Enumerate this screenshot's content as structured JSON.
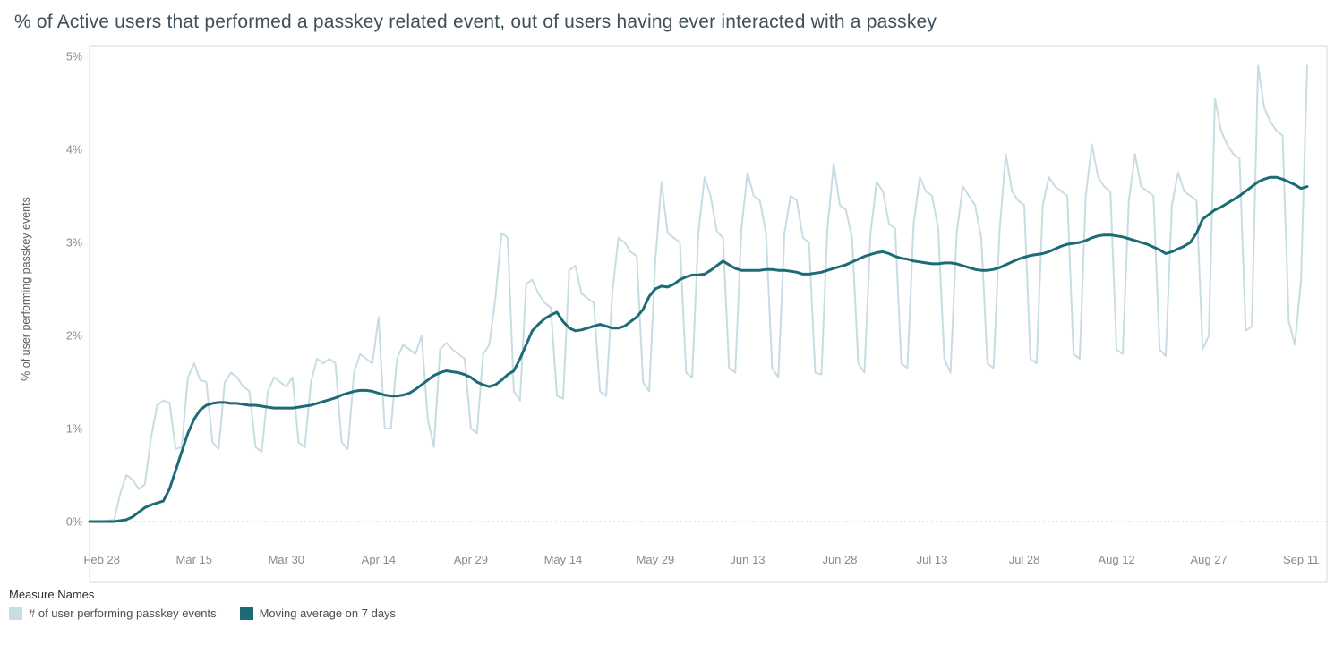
{
  "chart": {
    "title": "% of Active users that performed a passkey related event, out of users having ever interacted with a passkey",
    "y_axis": {
      "label": "% of user performing passkey events",
      "tick_labels": [
        "0%",
        "1%",
        "2%",
        "3%",
        "4%",
        "5%"
      ],
      "tick_values": [
        0,
        1,
        2,
        3,
        4,
        5
      ]
    },
    "x_axis": {
      "ticks": [
        {
          "label": "Feb 28",
          "day": 2
        },
        {
          "label": "Mar 15",
          "day": 17
        },
        {
          "label": "Mar 30",
          "day": 32
        },
        {
          "label": "Apr 14",
          "day": 47
        },
        {
          "label": "Apr 29",
          "day": 62
        },
        {
          "label": "May 14",
          "day": 77
        },
        {
          "label": "May 29",
          "day": 92
        },
        {
          "label": "Jun 13",
          "day": 107
        },
        {
          "label": "Jun 28",
          "day": 122
        },
        {
          "label": "Jul 13",
          "day": 137
        },
        {
          "label": "Jul 28",
          "day": 152
        },
        {
          "label": "Aug 12",
          "day": 167
        },
        {
          "label": "Aug 27",
          "day": 182
        },
        {
          "label": "Sep 11",
          "day": 197
        }
      ]
    },
    "legend": {
      "title": "Measure Names",
      "items": [
        {
          "label": "# of user performing passkey events",
          "color": "#c7dde3"
        },
        {
          "label": "Moving average on 7 days",
          "color": "#1c6b75"
        }
      ]
    },
    "colors": {
      "daily_line": "#c7dde3",
      "moving_average_line": "#1c6b75",
      "axis_border": "#d9d9d9",
      "zero_gridline": "#c9c9c9",
      "tick_text": "#8a8a8a",
      "axis_title_text": "#5f5f5f"
    }
  },
  "chart_data": {
    "type": "line",
    "title": "% of Active users that performed a passkey related event, out of users having ever interacted with a passkey",
    "xlabel": "",
    "ylabel": "% of user performing passkey events",
    "ylim": [
      0,
      5
    ],
    "x_unit": "days since Feb 26",
    "x_start_day": 0,
    "x_end_day": 198,
    "grid": "zero-line dotted only",
    "legend_position": "bottom-left",
    "series": [
      {
        "name": "# of user performing passkey events",
        "color": "#c7dde3",
        "width": 2,
        "values": [
          0.0,
          0.0,
          0.0,
          0.01,
          0.02,
          0.3,
          0.5,
          0.45,
          0.35,
          0.4,
          0.9,
          1.25,
          1.3,
          1.28,
          0.78,
          0.8,
          1.55,
          1.7,
          1.52,
          1.5,
          0.85,
          0.78,
          1.5,
          1.6,
          1.55,
          1.45,
          1.4,
          0.8,
          0.75,
          1.4,
          1.55,
          1.5,
          1.45,
          1.55,
          0.85,
          0.8,
          1.5,
          1.75,
          1.7,
          1.75,
          1.7,
          0.85,
          0.78,
          1.6,
          1.8,
          1.75,
          1.7,
          2.2,
          1.0,
          1.0,
          1.75,
          1.9,
          1.85,
          1.8,
          2.0,
          1.1,
          0.8,
          1.85,
          1.92,
          1.85,
          1.8,
          1.75,
          1.0,
          0.95,
          1.8,
          1.9,
          2.4,
          3.1,
          3.05,
          1.4,
          1.3,
          2.55,
          2.6,
          2.45,
          2.35,
          2.3,
          1.35,
          1.32,
          2.7,
          2.75,
          2.45,
          2.4,
          2.35,
          1.4,
          1.35,
          2.45,
          3.05,
          3.0,
          2.9,
          2.85,
          1.5,
          1.4,
          2.8,
          3.65,
          3.1,
          3.05,
          3.0,
          1.6,
          1.55,
          3.1,
          3.7,
          3.5,
          3.12,
          3.05,
          1.65,
          1.6,
          3.15,
          3.75,
          3.5,
          3.45,
          3.1,
          1.65,
          1.55,
          3.1,
          3.5,
          3.45,
          3.05,
          3.0,
          1.6,
          1.58,
          3.15,
          3.85,
          3.4,
          3.35,
          3.05,
          1.7,
          1.6,
          3.1,
          3.65,
          3.55,
          3.2,
          3.15,
          1.7,
          1.65,
          3.2,
          3.7,
          3.55,
          3.5,
          3.15,
          1.75,
          1.6,
          3.1,
          3.6,
          3.5,
          3.4,
          3.05,
          1.7,
          1.65,
          3.15,
          3.95,
          3.55,
          3.45,
          3.4,
          1.75,
          1.7,
          3.4,
          3.7,
          3.6,
          3.55,
          3.5,
          1.8,
          1.75,
          3.5,
          4.05,
          3.7,
          3.6,
          3.55,
          1.85,
          1.8,
          3.45,
          3.95,
          3.6,
          3.55,
          3.5,
          1.85,
          1.78,
          3.4,
          3.75,
          3.55,
          3.5,
          3.45,
          1.85,
          2.0,
          4.55,
          4.2,
          4.05,
          3.95,
          3.9,
          2.05,
          2.1,
          4.9,
          4.45,
          4.3,
          4.2,
          4.15,
          2.15,
          1.9,
          2.6,
          4.9
        ]
      },
      {
        "name": "Moving average on 7 days",
        "color": "#1c6b75",
        "width": 3,
        "values": [
          0.0,
          0.0,
          0.0,
          0.0,
          0.0,
          0.01,
          0.02,
          0.05,
          0.1,
          0.15,
          0.18,
          0.2,
          0.22,
          0.35,
          0.55,
          0.75,
          0.95,
          1.1,
          1.2,
          1.25,
          1.27,
          1.28,
          1.28,
          1.27,
          1.27,
          1.26,
          1.25,
          1.25,
          1.24,
          1.23,
          1.22,
          1.22,
          1.22,
          1.22,
          1.23,
          1.24,
          1.25,
          1.27,
          1.29,
          1.31,
          1.33,
          1.36,
          1.38,
          1.4,
          1.41,
          1.41,
          1.4,
          1.38,
          1.36,
          1.35,
          1.35,
          1.36,
          1.38,
          1.42,
          1.47,
          1.52,
          1.57,
          1.6,
          1.62,
          1.61,
          1.6,
          1.58,
          1.55,
          1.5,
          1.47,
          1.45,
          1.47,
          1.52,
          1.58,
          1.62,
          1.75,
          1.9,
          2.05,
          2.12,
          2.18,
          2.22,
          2.25,
          2.15,
          2.08,
          2.05,
          2.06,
          2.08,
          2.1,
          2.12,
          2.1,
          2.08,
          2.08,
          2.1,
          2.15,
          2.2,
          2.28,
          2.42,
          2.5,
          2.53,
          2.52,
          2.55,
          2.6,
          2.63,
          2.65,
          2.65,
          2.66,
          2.7,
          2.75,
          2.8,
          2.76,
          2.72,
          2.7,
          2.7,
          2.7,
          2.7,
          2.71,
          2.71,
          2.7,
          2.7,
          2.69,
          2.68,
          2.66,
          2.66,
          2.67,
          2.68,
          2.7,
          2.72,
          2.74,
          2.76,
          2.79,
          2.82,
          2.85,
          2.87,
          2.89,
          2.9,
          2.88,
          2.85,
          2.83,
          2.82,
          2.8,
          2.79,
          2.78,
          2.77,
          2.77,
          2.78,
          2.78,
          2.77,
          2.75,
          2.73,
          2.71,
          2.7,
          2.7,
          2.71,
          2.73,
          2.76,
          2.79,
          2.82,
          2.84,
          2.86,
          2.87,
          2.88,
          2.9,
          2.93,
          2.96,
          2.98,
          2.99,
          3.0,
          3.02,
          3.05,
          3.07,
          3.08,
          3.08,
          3.07,
          3.06,
          3.04,
          3.02,
          3.0,
          2.98,
          2.95,
          2.92,
          2.88,
          2.9,
          2.93,
          2.96,
          3.0,
          3.1,
          3.25,
          3.3,
          3.35,
          3.38,
          3.42,
          3.46,
          3.5,
          3.55,
          3.6,
          3.65,
          3.68,
          3.7,
          3.7,
          3.68,
          3.65,
          3.62,
          3.58,
          3.6
        ]
      }
    ]
  }
}
